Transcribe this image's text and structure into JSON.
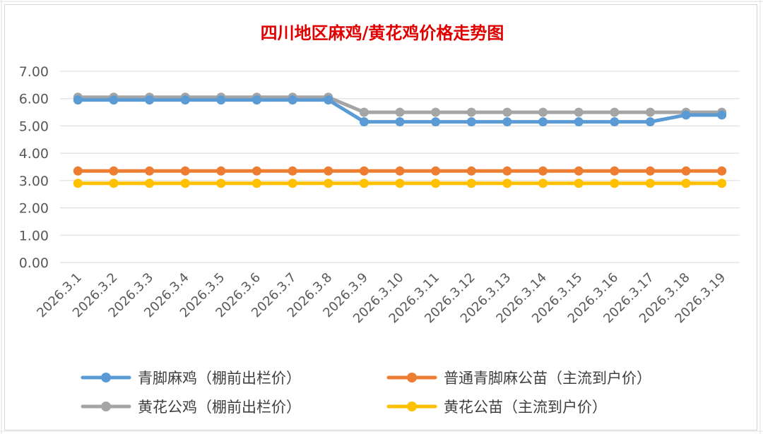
{
  "chart_data": {
    "type": "line",
    "title": "四川地区麻鸡/黄花鸡价格走势图",
    "xlabel": "",
    "ylabel": "",
    "ylim": [
      0,
      7
    ],
    "yticks": [
      "0.00",
      "1.00",
      "2.00",
      "3.00",
      "4.00",
      "5.00",
      "6.00",
      "7.00"
    ],
    "grid": true,
    "legend_position": "bottom",
    "categories": [
      "2026.3.1",
      "2026.3.2",
      "2026.3.3",
      "2026.3.4",
      "2026.3.5",
      "2026.3.6",
      "2026.3.7",
      "2026.3.8",
      "2026.3.9",
      "2026.3.10",
      "2026.3.11",
      "2026.3.12",
      "2026.3.13",
      "2026.3.14",
      "2026.3.15",
      "2026.3.16",
      "2026.3.17",
      "2026.3.18",
      "2026.3.19"
    ],
    "series": [
      {
        "name": "青脚麻鸡（棚前出栏价）",
        "color": "#5b9bd5",
        "values": [
          5.95,
          5.95,
          5.95,
          5.95,
          5.95,
          5.95,
          5.95,
          5.95,
          5.15,
          5.15,
          5.15,
          5.15,
          5.15,
          5.15,
          5.15,
          5.15,
          5.15,
          5.4,
          5.4
        ]
      },
      {
        "name": "普通青脚麻公苗（主流到户价）",
        "color": "#ed7d31",
        "values": [
          3.35,
          3.35,
          3.35,
          3.35,
          3.35,
          3.35,
          3.35,
          3.35,
          3.35,
          3.35,
          3.35,
          3.35,
          3.35,
          3.35,
          3.35,
          3.35,
          3.35,
          3.35,
          3.35
        ]
      },
      {
        "name": "黄花公鸡（棚前出栏价）",
        "color": "#a5a5a5",
        "values": [
          6.05,
          6.05,
          6.05,
          6.05,
          6.05,
          6.05,
          6.05,
          6.05,
          5.5,
          5.5,
          5.5,
          5.5,
          5.5,
          5.5,
          5.5,
          5.5,
          5.5,
          5.5,
          5.5
        ]
      },
      {
        "name": "黄花公苗（主流到户价）",
        "color": "#ffc000",
        "values": [
          2.9,
          2.9,
          2.9,
          2.9,
          2.9,
          2.9,
          2.9,
          2.9,
          2.9,
          2.9,
          2.9,
          2.9,
          2.9,
          2.9,
          2.9,
          2.9,
          2.9,
          2.9,
          2.9
        ]
      }
    ]
  }
}
